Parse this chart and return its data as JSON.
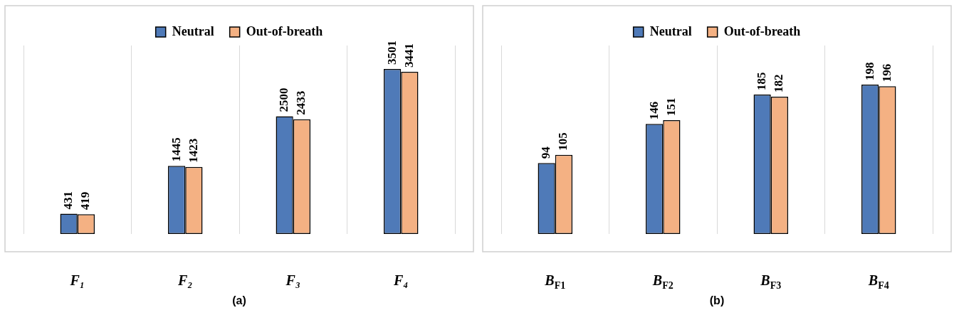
{
  "chart_data": [
    {
      "type": "bar",
      "categories": [
        "F₁",
        "F₂",
        "F₃",
        "F₄"
      ],
      "series": [
        {
          "name": "Neutral",
          "color": "#4f7ab8",
          "values": [
            431,
            1445,
            2500,
            3501
          ]
        },
        {
          "name": "Out-of-breath",
          "color": "#f4b183",
          "values": [
            419,
            1423,
            2433,
            3441
          ]
        }
      ],
      "data_labels": true,
      "grid": "x",
      "legend": "top",
      "tick_labels": "x",
      "annotations": [
        "(a)"
      ]
    },
    {
      "type": "bar",
      "categories": [
        "B$_{F1}$",
        "B$_{F2}$",
        "B$_{F3}$",
        "B$_{F4}$"
      ],
      "series": [
        {
          "name": "Neutral",
          "color": "#4f7ab8",
          "values": [
            94,
            146,
            185,
            198
          ]
        },
        {
          "name": "Out-of-breath",
          "color": "#f4b183",
          "values": [
            105,
            151,
            182,
            196
          ]
        }
      ],
      "data_labels": true,
      "grid": "x",
      "legend": "top",
      "tick_labels": "x",
      "annotations": [
        "(b)"
      ]
    }
  ]
}
